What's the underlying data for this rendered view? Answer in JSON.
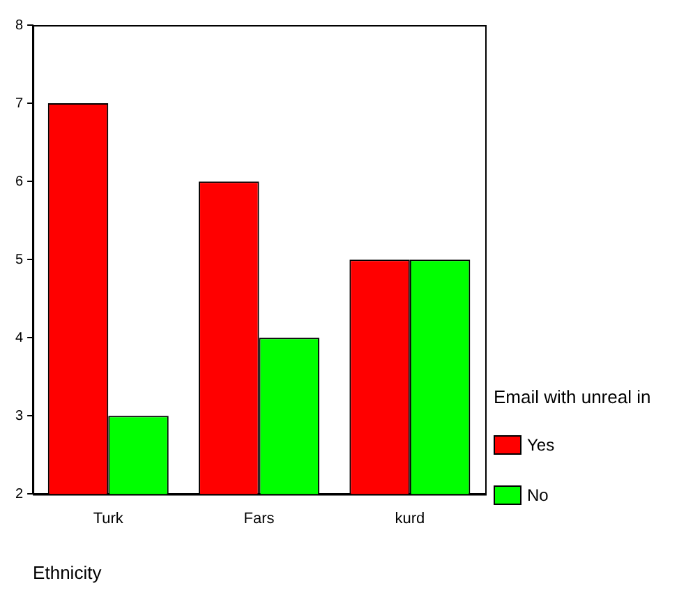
{
  "chart_data": {
    "type": "bar",
    "xlabel": "Ethnicity",
    "legend_title": "Email with unreal in",
    "categories": [
      "Turk",
      "Fars",
      "kurd"
    ],
    "series": [
      {
        "name": "Yes",
        "color": "#ff0000",
        "values": [
          7,
          6,
          5
        ]
      },
      {
        "name": "No",
        "color": "#00ff00",
        "values": [
          3,
          4,
          5
        ]
      }
    ],
    "ylim": [
      2,
      8
    ],
    "yticks": [
      2,
      3,
      4,
      5,
      6,
      7,
      8
    ],
    "grid": false,
    "legend": "right"
  }
}
